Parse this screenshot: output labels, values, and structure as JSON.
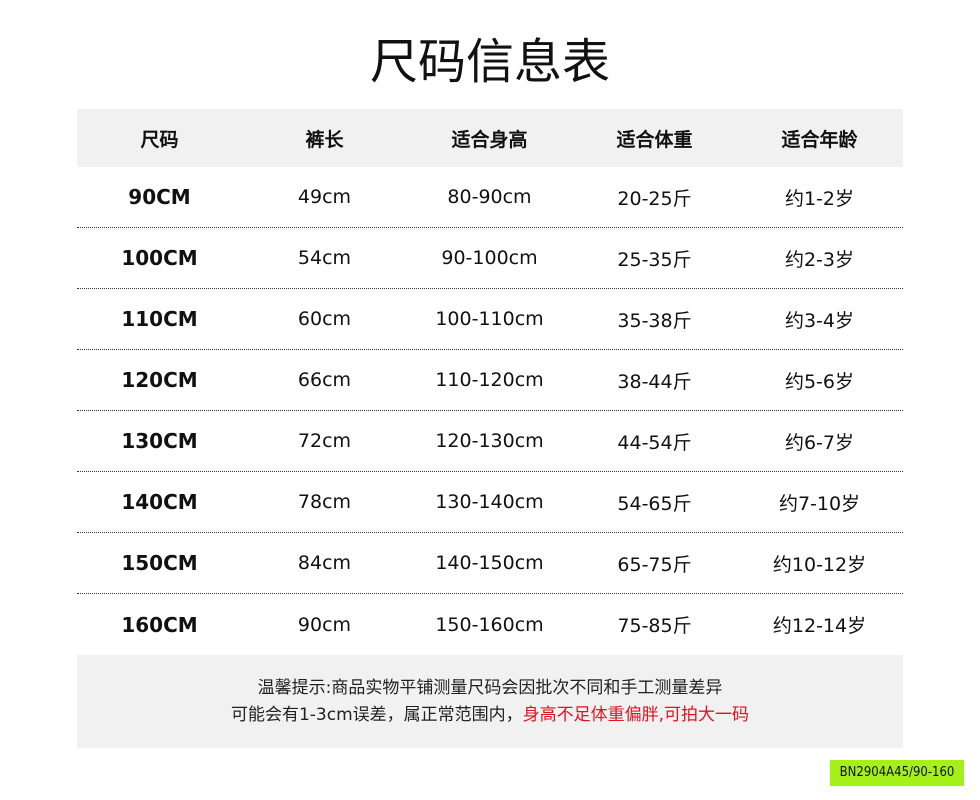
{
  "title": "尺码信息表",
  "table": {
    "headers": [
      "尺码",
      "裤长",
      "适合身高",
      "适合体重",
      "适合年龄"
    ],
    "rows": [
      [
        "90CM",
        "49cm",
        "80-90cm",
        "20-25斤",
        "约1-2岁"
      ],
      [
        "100CM",
        "54cm",
        "90-100cm",
        "25-35斤",
        "约2-3岁"
      ],
      [
        "110CM",
        "60cm",
        "100-110cm",
        "35-38斤",
        "约3-4岁"
      ],
      [
        "120CM",
        "66cm",
        "110-120cm",
        "38-44斤",
        "约5-6岁"
      ],
      [
        "130CM",
        "72cm",
        "120-130cm",
        "44-54斤",
        "约6-7岁"
      ],
      [
        "140CM",
        "78cm",
        "130-140cm",
        "54-65斤",
        "约7-10岁"
      ],
      [
        "150CM",
        "84cm",
        "140-150cm",
        "65-75斤",
        "约10-12岁"
      ],
      [
        "160CM",
        "90cm",
        "150-160cm",
        "75-85斤",
        "约12-14岁"
      ]
    ]
  },
  "note": {
    "line1": "温馨提示:商品实物平铺测量尺码会因批次不同和手工测量差异",
    "line2": "可能会有1-3cm误差，属正常范围内，",
    "line2_highlight": "身高不足体重偏胖,可拍大一码",
    "highlight_color": "#e0141e"
  },
  "product_code": "BN2904A45/90-160"
}
